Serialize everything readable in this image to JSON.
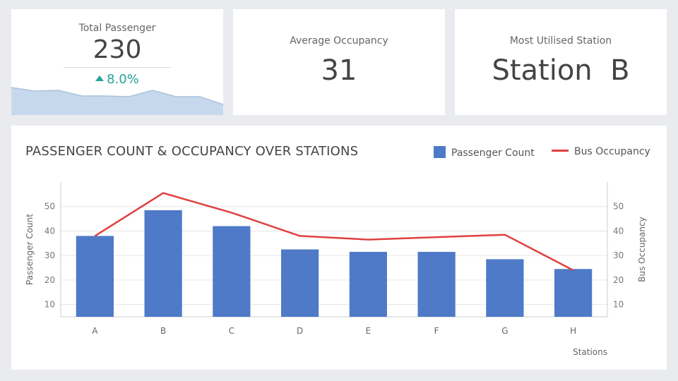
{
  "colors": {
    "background": "#e9ebee",
    "card": "#ffffff",
    "bar": "#4e7ac7",
    "line": "#e04040",
    "positive": "#2aa198",
    "sparkline_fill": "#c6d9ec",
    "sparkline_line": "#a9c3de"
  },
  "kpis": {
    "total_passenger": {
      "label": "Total Passenger",
      "value": "230",
      "delta": "8.0%",
      "delta_icon": "triangle-up-icon"
    },
    "average_occupancy": {
      "label": "Average Occupancy",
      "value": "31"
    },
    "most_utilised_station": {
      "label": "Most Utilised Station",
      "value": "Station  B"
    }
  },
  "sparkline": [
    0.78,
    0.68,
    0.7,
    0.54,
    0.54,
    0.52,
    0.7,
    0.52,
    0.52,
    0.3
  ],
  "chart_data": {
    "type": "bar",
    "title": "PASSENGER COUNT & OCCUPANCY OVER STATIONS",
    "xlabel": "Stations",
    "ylabel": "Passenger Count",
    "y2label": "Bus Occupancy",
    "categories": [
      "A",
      "B",
      "C",
      "D",
      "E",
      "F",
      "G",
      "H"
    ],
    "ylim": [
      5,
      60
    ],
    "y2lim": [
      5,
      60
    ],
    "yticks": [
      10,
      20,
      30,
      40,
      50
    ],
    "y2ticks": [
      10,
      20,
      30,
      40,
      50
    ],
    "grid": true,
    "legend_position": "top-right",
    "series": [
      {
        "name": "Passenger Count",
        "type": "bar",
        "axis": "left",
        "values": [
          38,
          48.5,
          42,
          32.5,
          31.5,
          31.5,
          28.5,
          24.5
        ]
      },
      {
        "name": "Bus Occupancy",
        "type": "line",
        "axis": "right",
        "values": [
          38,
          55.5,
          47.5,
          38,
          36.5,
          37.5,
          38.5,
          24
        ]
      }
    ]
  }
}
